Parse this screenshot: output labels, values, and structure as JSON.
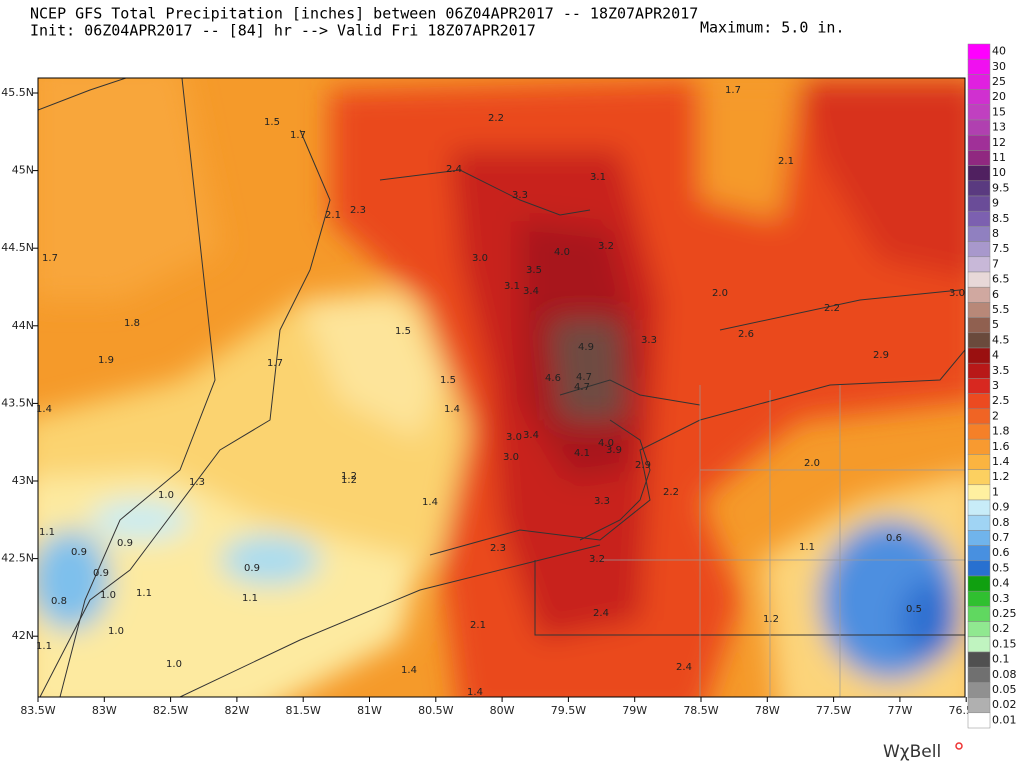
{
  "header": {
    "title_line1": "NCEP GFS Total Precipitation [inches] between 06Z04APR2017 -- 18Z07APR2017",
    "title_line2": "Init: 06Z04APR2017 -- [84] hr --> Valid Fri 18Z07APR2017",
    "maximum": "Maximum:  5.0 in."
  },
  "map": {
    "x_labels": [
      "83.5W",
      "83W",
      "82.5W",
      "82W",
      "81.5W",
      "81W",
      "80.5W",
      "80W",
      "79.5W",
      "79W",
      "78.5W",
      "78W",
      "77.5W",
      "77W",
      "76.5W"
    ],
    "y_labels": [
      "45.5N",
      "45N",
      "44.5N",
      "44N",
      "43.5N",
      "43N",
      "42.5N",
      "42N"
    ],
    "point_labels": [
      "1.7",
      "1.5",
      "1.7",
      "2.2",
      "2.4",
      "3.1",
      "2.1",
      "3.3",
      "2.1",
      "2.3",
      "4.0",
      "3.2",
      "1.7",
      "3.0",
      "3.5",
      "3.1",
      "3.4",
      "2.0",
      "2.2",
      "3.0",
      "1.8",
      "1.5",
      "2.6",
      "3.3",
      "4.9",
      "2.9",
      "1.9",
      "1.7",
      "4.6",
      "4.7",
      "4.7",
      "1.5",
      "1.4",
      "1.4",
      "3.0",
      "3.4",
      "4.0",
      "3.0",
      "4.1",
      "3.9",
      "2.9",
      "2.0",
      "1.2",
      "1.2",
      "1.3",
      "1.0",
      "2.2",
      "1.4",
      "3.3",
      "1.1",
      "0.9",
      "0.6",
      "0.9",
      "2.3",
      "1.1",
      "3.2",
      "0.9",
      "0.9",
      "1.0",
      "1.1",
      "1.1",
      "0.8",
      "0.5",
      "2.4",
      "1.2",
      "2.1",
      "1.0",
      "1.1",
      "1.0",
      "2.4",
      "1.4",
      "1.4"
    ]
  },
  "colorbar": {
    "labels": [
      "40",
      "30",
      "25",
      "20",
      "15",
      "13",
      "12",
      "11",
      "10",
      "9.5",
      "9",
      "8.5",
      "8",
      "7.5",
      "7",
      "6.5",
      "6",
      "5.5",
      "5",
      "4.5",
      "4",
      "3.5",
      "3",
      "2.5",
      "2",
      "1.8",
      "1.6",
      "1.4",
      "1.2",
      "1",
      "0.9",
      "0.8",
      "0.7",
      "0.6",
      "0.5",
      "0.4",
      "0.3",
      "0.25",
      "0.2",
      "0.15",
      "0.1",
      "0.08",
      "0.05",
      "0.02",
      "0.01"
    ]
  },
  "brand": "WχBell"
}
